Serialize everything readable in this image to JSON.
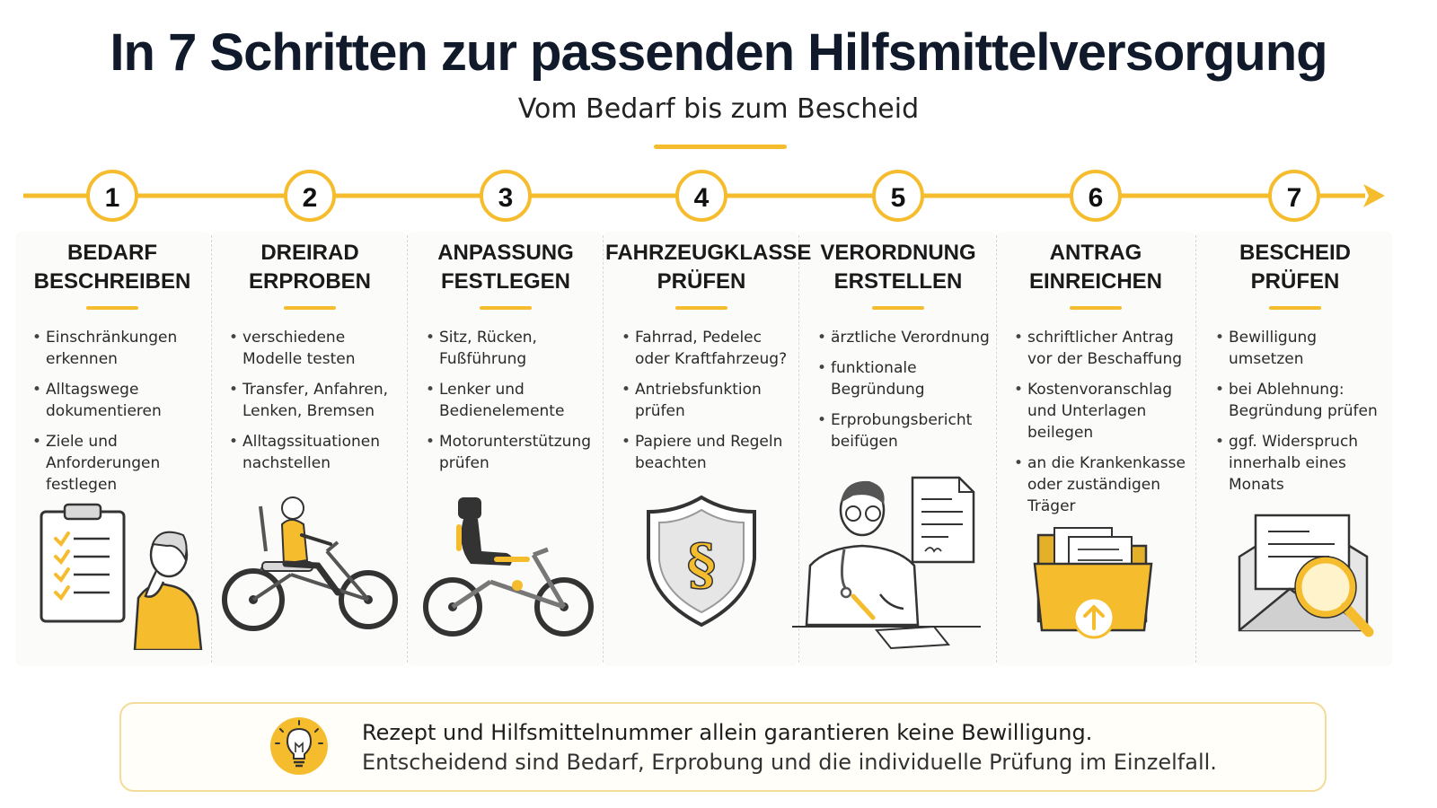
{
  "header": {
    "title": "In 7 Schritten zur passenden Hilfsmittelversorgung",
    "subtitle": "Vom Bedarf bis zum Bescheid"
  },
  "colors": {
    "accent": "#f5bd2e",
    "text": "#111a2b",
    "gray": "#d9d9d9"
  },
  "steps": [
    {
      "number": "1",
      "title": "BEDARF\nBESCHREIBEN",
      "icon": "clipboard-checklist-person-icon",
      "bullets": [
        "Einschränkungen\nerkennen",
        "Alltagswege\ndokumentieren",
        "Ziele und\nAnforderungen\nfestlegen"
      ]
    },
    {
      "number": "2",
      "title": "DREIRAD\nERPROBEN",
      "icon": "person-on-tricycle-icon",
      "bullets": [
        "verschiedene\nModelle testen",
        "Transfer, Anfahren,\nLenken, Bremsen",
        "Alltagssituationen\nnachstellen"
      ]
    },
    {
      "number": "3",
      "title": "ANPASSUNG\nFESTLEGEN",
      "icon": "adapted-tricycle-seat-icon",
      "bullets": [
        "Sitz, Rücken,\nFußführung",
        "Lenker und\nBedienelemente",
        "Motorunterstützung\nprüfen"
      ]
    },
    {
      "number": "4",
      "title": "FAHRZEUGKLASSE\nPRÜFEN",
      "icon": "paragraph-shield-icon",
      "bullets": [
        "Fahrrad, Pedelec\noder Kraftfahrzeug?",
        "Antriebsfunktion\nprüfen",
        "Papiere und Regeln\nbeachten"
      ]
    },
    {
      "number": "5",
      "title": "VERORDNUNG\nERSTELLEN",
      "icon": "doctor-prescription-icon",
      "bullets": [
        "ärztliche Verordnung",
        "funktionale\nBegründung",
        "Erprobungsbericht\nbeifügen"
      ]
    },
    {
      "number": "6",
      "title": "ANTRAG\nEINREICHEN",
      "icon": "folder-upload-icon",
      "bullets": [
        "schriftlicher Antrag\nvor der Beschaffung",
        "Kostenvoranschlag\nund Unterlagen\nbeilegen",
        "an die Krankenkasse\noder zuständigen\nTräger"
      ]
    },
    {
      "number": "7",
      "title": "BESCHEID\nPRÜFEN",
      "icon": "envelope-magnifier-icon",
      "bullets": [
        "Bewilligung\numsetzen",
        "bei Ablehnung:\nBegründung prüfen",
        "ggf. Widerspruch\ninnerhalb eines\nMonats"
      ]
    }
  ],
  "note": {
    "icon": "lightbulb-icon",
    "line1": "Rezept und Hilfsmittelnummer allein garantieren keine Bewilligung.",
    "line2": "Entscheidend sind Bedarf, Erprobung und die individuelle Prüfung im Einzelfall."
  }
}
